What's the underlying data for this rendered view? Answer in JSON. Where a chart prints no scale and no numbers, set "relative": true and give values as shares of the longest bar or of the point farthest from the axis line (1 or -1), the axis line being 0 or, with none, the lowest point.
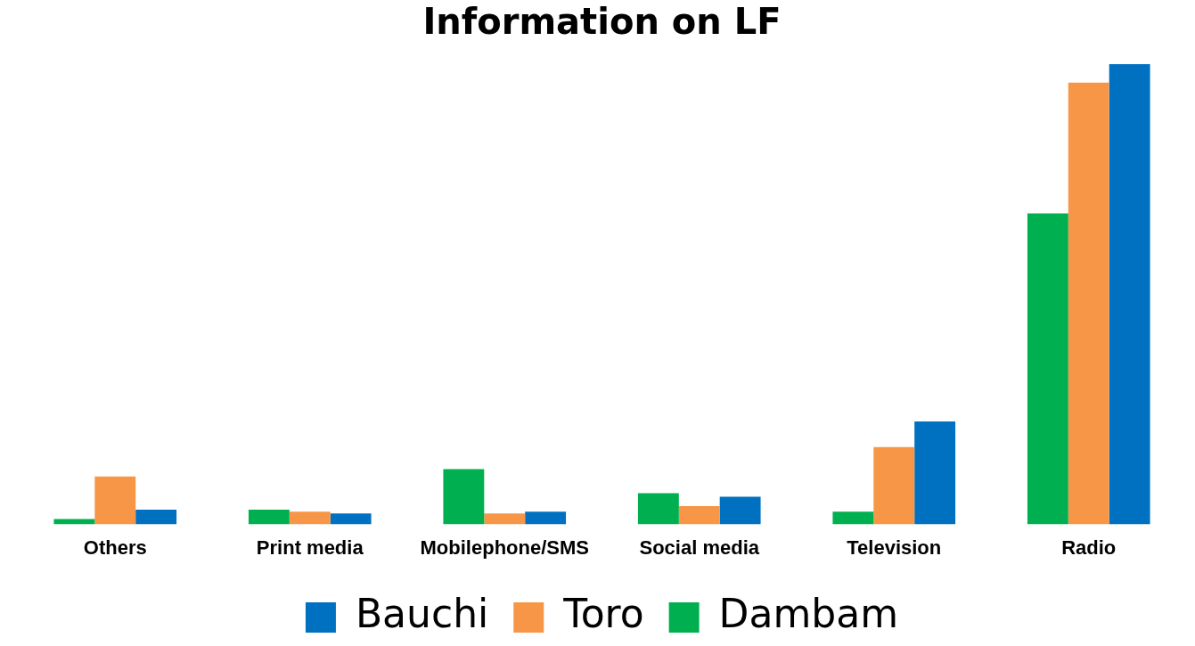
{
  "chart_data": {
    "type": "bar",
    "title": "Information on LF",
    "relative": true,
    "legend": "bottom",
    "grid": false,
    "categories": [
      "Others",
      "Print media",
      "Mobilephone/SMS",
      "Social media",
      "Television",
      "Radio"
    ],
    "series": [
      {
        "name": "Dambam",
        "color": "#00b050",
        "values": [
          0.012,
          0.032,
          0.12,
          0.068,
          0.028,
          0.676
        ]
      },
      {
        "name": "Toro",
        "color": "#f79646",
        "values": [
          0.104,
          0.028,
          0.024,
          0.04,
          0.168,
          0.96
        ]
      },
      {
        "name": "Bauchi",
        "color": "#0070c0",
        "values": [
          0.032,
          0.024,
          0.028,
          0.06,
          0.224,
          1
        ]
      }
    ]
  }
}
